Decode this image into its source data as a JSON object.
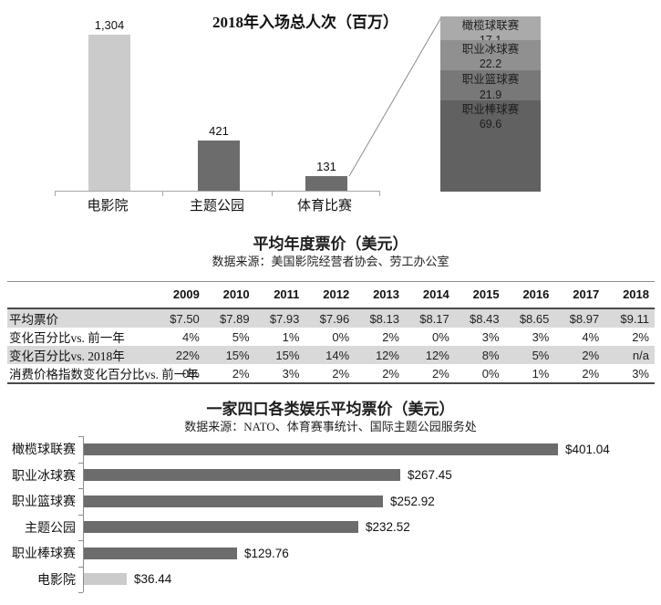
{
  "colors": {
    "light_bar": "#cbcbcb",
    "dark_bar": "#6c6c6c",
    "stacked": [
      "#aaaaaa",
      "#909090",
      "#787878",
      "#616161"
    ],
    "row_shade": "#d9d9d9",
    "axis_line": "#a8a8a8",
    "rule_dark": "#4a4a4a",
    "rule_light": "#8c8c8c"
  },
  "chart_data": [
    {
      "type": "bar",
      "title": "2018年入场总人次（百万）",
      "categories": [
        "电影院",
        "主题公园",
        "体育比赛"
      ],
      "values": [
        1304,
        421,
        131
      ],
      "value_labels": [
        "1,304",
        "421",
        "131"
      ],
      "bar_shades": [
        "light",
        "dark",
        "dark"
      ],
      "ylim": [
        0,
        1400
      ],
      "breakdown": {
        "linked_category": "体育比赛",
        "segments": [
          {
            "label": "橄榄球联赛",
            "value": 17.1,
            "display": "17.1"
          },
          {
            "label": "职业冰球赛",
            "value": 22.2,
            "display": "22.2"
          },
          {
            "label": "职业篮球赛",
            "value": 21.9,
            "display": "21.9"
          },
          {
            "label": "职业棒球赛",
            "value": 69.6,
            "display": "69.6"
          }
        ]
      }
    },
    {
      "type": "table",
      "title": "平均年度票价（美元）",
      "subtitle": "数据来源：美国影院经营者协会、劳工办公室",
      "columns": [
        "2009",
        "2010",
        "2011",
        "2012",
        "2013",
        "2014",
        "2015",
        "2016",
        "2017",
        "2018"
      ],
      "rows": [
        {
          "label": "平均票价",
          "shaded": true,
          "values": [
            "$7.50",
            "$7.89",
            "$7.93",
            "$7.96",
            "$8.13",
            "$8.17",
            "$8.43",
            "$8.65",
            "$8.97",
            "$9.11"
          ]
        },
        {
          "label": "变化百分比vs. 前一年",
          "shaded": false,
          "values": [
            "4%",
            "5%",
            "1%",
            "0%",
            "2%",
            "0%",
            "3%",
            "3%",
            "4%",
            "2%"
          ]
        },
        {
          "label": "变化百分比vs. 2018年",
          "shaded": true,
          "values": [
            "22%",
            "15%",
            "15%",
            "14%",
            "12%",
            "12%",
            "8%",
            "5%",
            "2%",
            "n/a"
          ]
        },
        {
          "label": "消费价格指数变化百分比vs. 前一年",
          "shaded": false,
          "values": [
            "0%",
            "2%",
            "3%",
            "2%",
            "2%",
            "2%",
            "0%",
            "1%",
            "2%",
            "3%"
          ]
        }
      ]
    },
    {
      "type": "bar",
      "orientation": "horizontal",
      "title": "一家四口各类娱乐平均票价（美元）",
      "subtitle": "数据来源：NATO、体育赛事统计、国际主题公园服务处",
      "categories": [
        "橄榄球联赛",
        "职业冰球赛",
        "职业篮球赛",
        "主题公园",
        "职业棒球赛",
        "电影院"
      ],
      "values": [
        401.04,
        267.45,
        252.92,
        232.52,
        129.76,
        36.44
      ],
      "value_labels": [
        "$401.04",
        "$267.45",
        "$252.92",
        "$232.52",
        "$129.76",
        "$36.44"
      ],
      "bar_shades": [
        "dark",
        "dark",
        "dark",
        "dark",
        "dark",
        "light"
      ],
      "xlim": [
        0,
        450
      ]
    }
  ]
}
